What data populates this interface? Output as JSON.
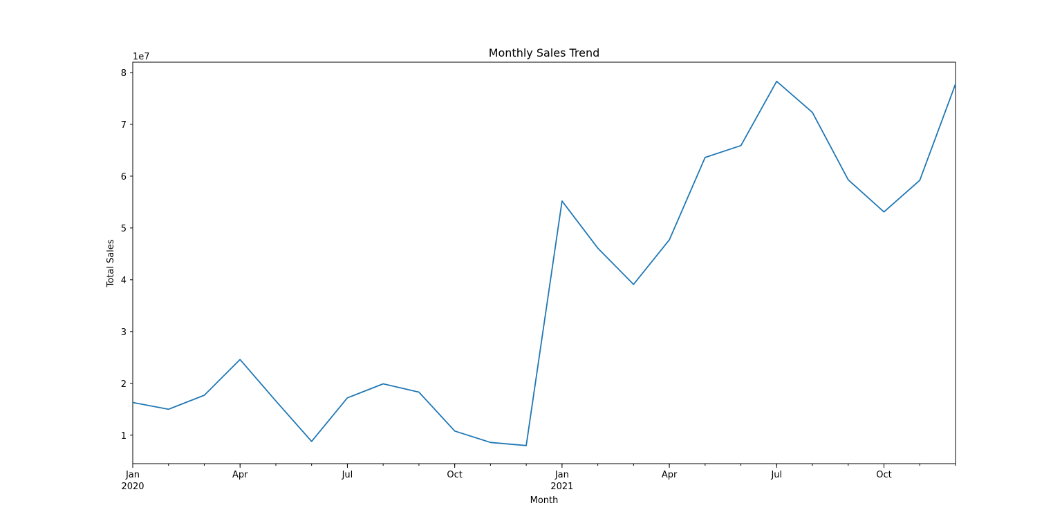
{
  "chart_data": {
    "type": "line",
    "title": "Monthly Sales Trend",
    "xlabel": "Month",
    "ylabel": "Total Sales",
    "y_offset_label": "1e7",
    "y_scale_factor": 10000000,
    "ylim": [
      4500000,
      82000000
    ],
    "xlim": [
      "2020-01",
      "2021-12"
    ],
    "grid": false,
    "legend": "none",
    "line_color": "#1f77b4",
    "x_tick_labels": [
      {
        "month": "2020-01",
        "label": "Jan",
        "sublabel": "2020"
      },
      {
        "month": "2020-04",
        "label": "Apr"
      },
      {
        "month": "2020-07",
        "label": "Jul"
      },
      {
        "month": "2020-10",
        "label": "Oct"
      },
      {
        "month": "2021-01",
        "label": "Jan",
        "sublabel": "2021"
      },
      {
        "month": "2021-04",
        "label": "Apr"
      },
      {
        "month": "2021-07",
        "label": "Jul"
      },
      {
        "month": "2021-10",
        "label": "Oct"
      }
    ],
    "y_ticks": [
      1,
      2,
      3,
      4,
      5,
      6,
      7,
      8
    ],
    "series": [
      {
        "x": [
          "2020-01",
          "2020-02",
          "2020-03",
          "2020-04",
          "2020-05",
          "2020-06",
          "2020-07",
          "2020-08",
          "2020-09",
          "2020-10",
          "2020-11",
          "2020-12",
          "2021-01",
          "2021-02",
          "2021-03",
          "2021-04",
          "2021-05",
          "2021-06",
          "2021-07",
          "2021-08",
          "2021-09",
          "2021-10",
          "2021-11",
          "2021-12"
        ],
        "values": [
          16300000,
          15000000,
          17700000,
          24600000,
          16600000,
          8800000,
          17200000,
          19900000,
          18300000,
          10800000,
          8600000,
          8000000,
          55200000,
          46100000,
          39100000,
          47700000,
          63600000,
          65900000,
          78300000,
          72300000,
          59300000,
          53100000,
          59200000,
          77800000
        ]
      }
    ]
  }
}
